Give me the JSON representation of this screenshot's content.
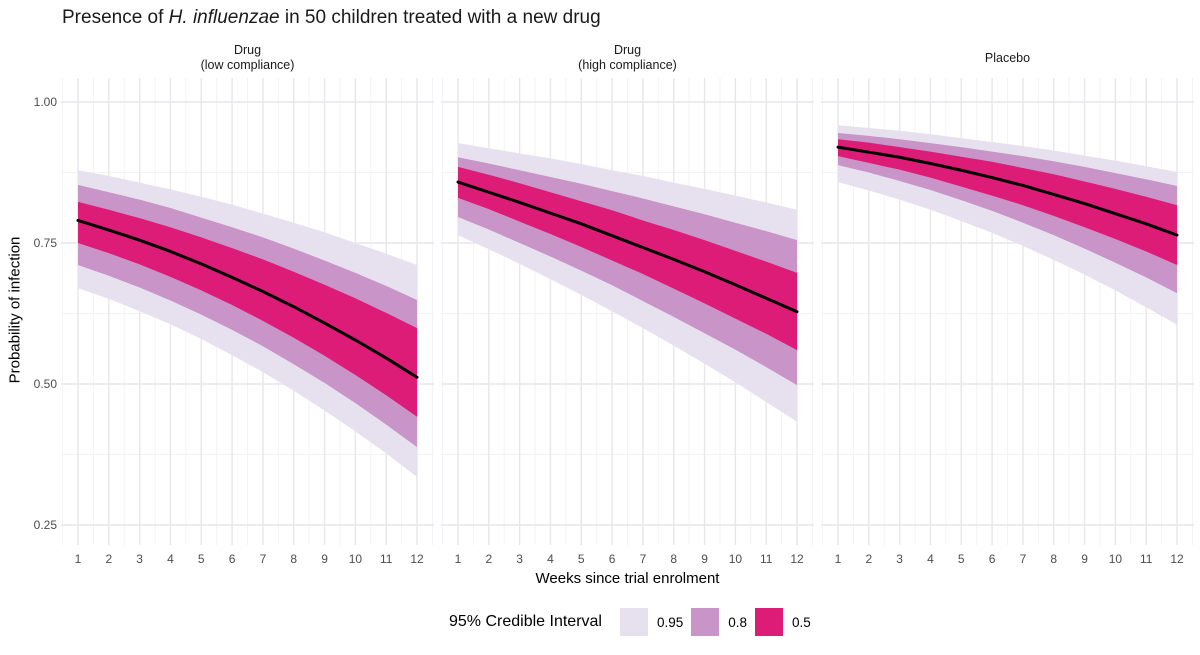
{
  "title": {
    "prefix": "Presence of ",
    "italic": "H. influenzae",
    "suffix": " in 50 children treated with a new drug"
  },
  "y_axis": {
    "title": "Probability of infection",
    "tick_labels": [
      "1.00",
      "0.75",
      "0.50",
      "0.25"
    ],
    "tick_values": [
      1.0,
      0.75,
      0.5,
      0.25
    ]
  },
  "x_axis": {
    "title": "Weeks since trial enrolment",
    "tick_labels": [
      "1",
      "2",
      "3",
      "4",
      "5",
      "6",
      "7",
      "8",
      "9",
      "10",
      "11",
      "12"
    ]
  },
  "legend": {
    "title": "95% Credible Interval",
    "items": [
      {
        "label": "0.95",
        "color": "#E7E1EF"
      },
      {
        "label": "0.8",
        "color": "#C994C7"
      },
      {
        "label": "0.5",
        "color": "#DD1C77"
      }
    ]
  },
  "style": {
    "median_color": "#000000",
    "grid_major": "#E7E6EA",
    "grid_minor": "#F3F2F5",
    "band95_color": "#E7E1EF",
    "band80_color": "#C994C7",
    "band50_color": "#DD1C77"
  },
  "chart_data": {
    "type": "line",
    "title": "Presence of H. influenzae in 50 children treated with a new drug",
    "xlabel": "Weeks since trial enrolment",
    "ylabel": "Probability of infection",
    "x": [
      1,
      2,
      3,
      4,
      5,
      6,
      7,
      8,
      9,
      10,
      11,
      12
    ],
    "ylim": [
      0.23,
      1.05
    ],
    "y_major_ticks": [
      0.25,
      0.5,
      0.75,
      1.0
    ],
    "y_minor_ticks": [
      0.375,
      0.625,
      0.875
    ],
    "x_minor_ticks": [
      0.5,
      1.5,
      2.5,
      3.5,
      4.5,
      5.5,
      6.5,
      7.5,
      8.5,
      9.5,
      10.5,
      11.5,
      12.5
    ],
    "grid": true,
    "legend_position": "bottom",
    "bands": [
      "0.95",
      "0.8",
      "0.5"
    ],
    "facets": [
      {
        "name": "Drug (low compliance)",
        "strip": [
          "Drug",
          "(low compliance)"
        ],
        "median": [
          0.79,
          0.773,
          0.755,
          0.735,
          0.713,
          0.689,
          0.664,
          0.637,
          0.608,
          0.578,
          0.546,
          0.512
        ],
        "ci50_hi": [
          0.823,
          0.809,
          0.794,
          0.778,
          0.76,
          0.741,
          0.721,
          0.699,
          0.676,
          0.652,
          0.626,
          0.599
        ],
        "ci50_lo": [
          0.75,
          0.732,
          0.712,
          0.69,
          0.666,
          0.64,
          0.612,
          0.582,
          0.55,
          0.516,
          0.48,
          0.442
        ],
        "ci80_hi": [
          0.853,
          0.84,
          0.827,
          0.812,
          0.795,
          0.778,
          0.76,
          0.74,
          0.719,
          0.697,
          0.674,
          0.649
        ],
        "ci80_lo": [
          0.711,
          0.692,
          0.671,
          0.648,
          0.623,
          0.596,
          0.567,
          0.535,
          0.502,
          0.466,
          0.428,
          0.388
        ],
        "ci95_hi": [
          0.879,
          0.869,
          0.857,
          0.845,
          0.832,
          0.818,
          0.802,
          0.786,
          0.769,
          0.75,
          0.731,
          0.711
        ],
        "ci95_lo": [
          0.67,
          0.651,
          0.629,
          0.606,
          0.58,
          0.551,
          0.521,
          0.488,
          0.453,
          0.416,
          0.377,
          0.335
        ]
      },
      {
        "name": "Drug (high compliance)",
        "strip": [
          "Drug",
          "(high compliance)"
        ],
        "median": [
          0.858,
          0.84,
          0.822,
          0.803,
          0.784,
          0.763,
          0.742,
          0.721,
          0.699,
          0.676,
          0.652,
          0.628
        ],
        "ci50_hi": [
          0.885,
          0.871,
          0.856,
          0.84,
          0.824,
          0.808,
          0.79,
          0.773,
          0.755,
          0.736,
          0.717,
          0.697
        ],
        "ci50_lo": [
          0.83,
          0.81,
          0.788,
          0.766,
          0.743,
          0.719,
          0.695,
          0.669,
          0.643,
          0.616,
          0.589,
          0.56
        ],
        "ci80_hi": [
          0.902,
          0.891,
          0.879,
          0.867,
          0.855,
          0.842,
          0.829,
          0.815,
          0.801,
          0.786,
          0.771,
          0.755
        ],
        "ci80_lo": [
          0.796,
          0.774,
          0.75,
          0.726,
          0.701,
          0.675,
          0.647,
          0.619,
          0.59,
          0.561,
          0.53,
          0.498
        ],
        "ci95_hi": [
          0.927,
          0.918,
          0.909,
          0.9,
          0.89,
          0.879,
          0.869,
          0.857,
          0.846,
          0.834,
          0.822,
          0.809
        ],
        "ci95_lo": [
          0.764,
          0.739,
          0.713,
          0.686,
          0.658,
          0.629,
          0.599,
          0.568,
          0.536,
          0.503,
          0.468,
          0.433
        ]
      },
      {
        "name": "Placebo",
        "strip": [
          "Placebo"
        ],
        "median": [
          0.92,
          0.911,
          0.902,
          0.891,
          0.879,
          0.866,
          0.852,
          0.836,
          0.82,
          0.802,
          0.784,
          0.764
        ],
        "ci50_hi": [
          0.934,
          0.928,
          0.92,
          0.912,
          0.903,
          0.894,
          0.883,
          0.872,
          0.859,
          0.846,
          0.832,
          0.817
        ],
        "ci50_lo": [
          0.904,
          0.892,
          0.88,
          0.866,
          0.85,
          0.834,
          0.817,
          0.798,
          0.778,
          0.757,
          0.735,
          0.711
        ],
        "ci80_hi": [
          0.945,
          0.94,
          0.934,
          0.927,
          0.92,
          0.912,
          0.904,
          0.895,
          0.885,
          0.874,
          0.863,
          0.851
        ],
        "ci80_lo": [
          0.888,
          0.875,
          0.86,
          0.844,
          0.826,
          0.807,
          0.786,
          0.764,
          0.74,
          0.715,
          0.689,
          0.661
        ],
        "ci95_hi": [
          0.959,
          0.954,
          0.949,
          0.943,
          0.936,
          0.929,
          0.922,
          0.914,
          0.905,
          0.896,
          0.886,
          0.876
        ],
        "ci95_lo": [
          0.858,
          0.843,
          0.827,
          0.809,
          0.789,
          0.768,
          0.745,
          0.72,
          0.694,
          0.666,
          0.636,
          0.605
        ]
      }
    ]
  }
}
